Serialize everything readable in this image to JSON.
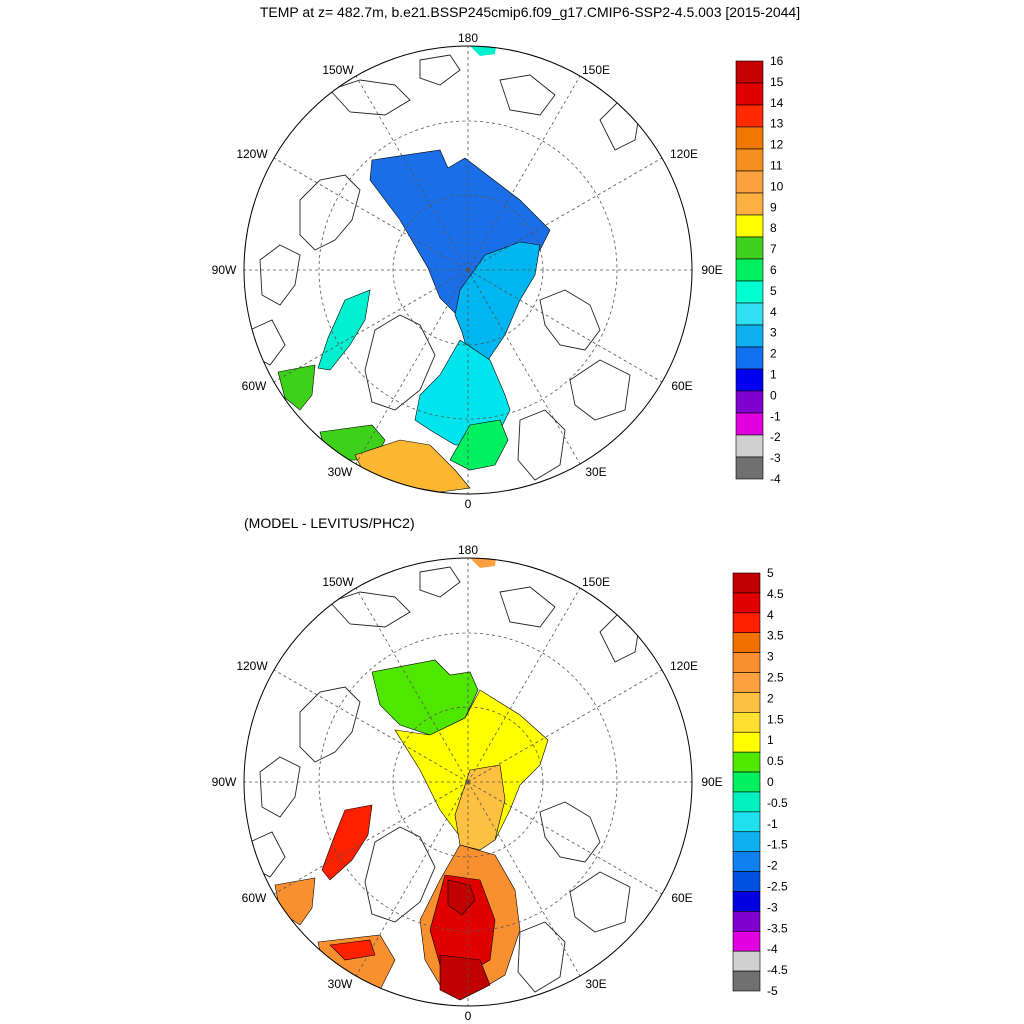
{
  "figure": {
    "title": "TEMP at z= 482.7m, b.e21.BSSP245cmip6.f09_g17.CMIP6-SSP2-4.5.003 [2015-2044]",
    "subtitle": "(MODEL - LEVITUS/PHC2)"
  },
  "map_axes": {
    "lon_labels": [
      "180",
      "150E",
      "120E",
      "90E",
      "60E",
      "30E",
      "0",
      "30W",
      "60W",
      "90W",
      "120W",
      "150W"
    ]
  },
  "panels": [
    {
      "id": "temperature",
      "colorbar": {
        "labels": [
          "16",
          "15",
          "14",
          "13",
          "12",
          "11",
          "10",
          "9",
          "8",
          "7",
          "6",
          "5",
          "4",
          "3",
          "2",
          "1",
          "0",
          "-1",
          "-2",
          "-3",
          "-4"
        ],
        "colors": [
          "#c40000",
          "#e00000",
          "#ff2a00",
          "#f07800",
          "#f59020",
          "#fca040",
          "#fdb040",
          "#ffff00",
          "#40d020",
          "#00f060",
          "#00ffd0",
          "#30e0f0",
          "#10b0f0",
          "#1070f0",
          "#0000f0",
          "#8000d0",
          "#e000e0",
          "#d0d0d0",
          "#707070"
        ]
      }
    },
    {
      "id": "difference",
      "colorbar": {
        "labels": [
          "5",
          "4.5",
          "4",
          "3.5",
          "3",
          "2.5",
          "2",
          "1.5",
          "1",
          "0.5",
          "0",
          "-0.5",
          "-1",
          "-1.5",
          "-2",
          "-2.5",
          "-3",
          "-3.5",
          "-4",
          "-4.5",
          "-5"
        ],
        "colors": [
          "#c00000",
          "#e00000",
          "#ff2000",
          "#f07000",
          "#f89030",
          "#fca040",
          "#fdc040",
          "#ffe030",
          "#ffff00",
          "#50e800",
          "#00f060",
          "#00f0c0",
          "#20e0f0",
          "#10b0f0",
          "#1080f0",
          "#0050e0",
          "#0000e0",
          "#8000d0",
          "#e000e0",
          "#d0d0d0",
          "#707070"
        ]
      }
    }
  ],
  "colors": {
    "land_outline": "#222222",
    "grid": "#555555"
  }
}
